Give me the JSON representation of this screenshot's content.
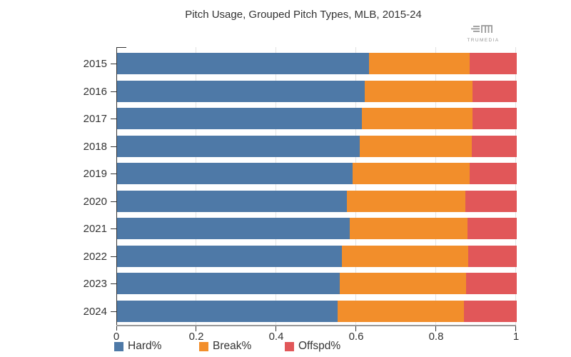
{
  "title": "Pitch Usage, Grouped Pitch Types, MLB, 2015-24",
  "logo": {
    "text": "TRUMEDIA"
  },
  "chart_data": {
    "type": "bar",
    "orientation": "horizontal",
    "stacked": true,
    "title": "Pitch Usage, Grouped Pitch Types, MLB, 2015-24",
    "xlabel": "",
    "ylabel": "",
    "categories": [
      "2015",
      "2016",
      "2017",
      "2018",
      "2019",
      "2020",
      "2021",
      "2022",
      "2023",
      "2024"
    ],
    "series": [
      {
        "name": "Hard%",
        "color": "#4e79a7",
        "values": [
          0.63,
          0.62,
          0.612,
          0.608,
          0.59,
          0.575,
          0.582,
          0.562,
          0.557,
          0.552
        ]
      },
      {
        "name": "Break%",
        "color": "#f28e2b",
        "values": [
          0.253,
          0.27,
          0.278,
          0.279,
          0.293,
          0.296,
          0.295,
          0.317,
          0.317,
          0.316
        ]
      },
      {
        "name": "Offspd%",
        "color": "#e15759",
        "values": [
          0.117,
          0.11,
          0.11,
          0.113,
          0.117,
          0.129,
          0.123,
          0.121,
          0.126,
          0.132
        ]
      }
    ],
    "xlim": [
      0,
      1
    ],
    "x_ticks": [
      0,
      0.2,
      0.4,
      0.6,
      0.8,
      1
    ],
    "x_tick_labels": [
      "0",
      "0.2",
      "0.4",
      "0.6",
      "0.8",
      "1"
    ],
    "grid": true,
    "legend_position": "bottom"
  }
}
